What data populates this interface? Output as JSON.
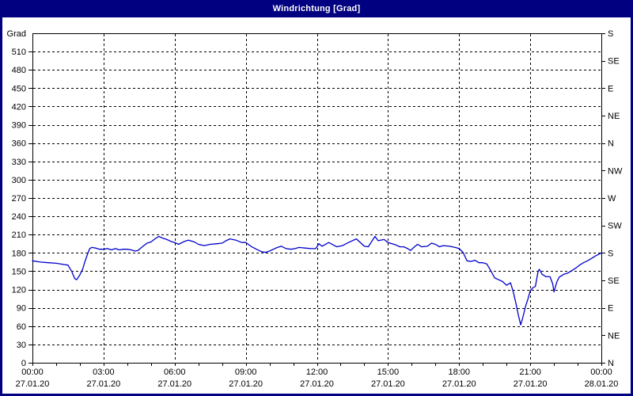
{
  "window": {
    "title": "Windrichtung [Grad]",
    "colors": {
      "titlebar_bg": "#000080",
      "titlebar_text": "#ffffff",
      "frame": "#000080",
      "background": "#ffffff",
      "grid": "#000000",
      "axis": "#000000",
      "series_line": "#0000cc",
      "label_text": "#000000"
    }
  },
  "chart_data": {
    "type": "line",
    "title": "Windrichtung [Grad]",
    "grid": "dashed, horizontal every 30 deg, vertical every 3 h",
    "legend": "none",
    "y_axis_left": {
      "axis_title": "Grad",
      "min": 0,
      "max": 540,
      "tick_step": 30,
      "tick_labels": [
        0,
        30,
        60,
        90,
        120,
        150,
        180,
        210,
        240,
        270,
        300,
        330,
        360,
        390,
        420,
        450,
        480,
        510
      ]
    },
    "y_axis_right": {
      "tick_step_deg": 45,
      "labels_bottom_to_top": [
        "N",
        "NE",
        "E",
        "SE",
        "S",
        "SW",
        "W",
        "NW",
        "N",
        "NE",
        "E",
        "SE",
        "S"
      ]
    },
    "x_axis": {
      "range_hours": 24,
      "minor_tick_hours": 1,
      "label_step_hours": 3,
      "labels": [
        {
          "time": "00:00",
          "date": "27.01.20"
        },
        {
          "time": "03:00",
          "date": "27.01.20"
        },
        {
          "time": "06:00",
          "date": "27.01.20"
        },
        {
          "time": "09:00",
          "date": "27.01.20"
        },
        {
          "time": "12:00",
          "date": "27.01.20"
        },
        {
          "time": "15:00",
          "date": "27.01.20"
        },
        {
          "time": "18:00",
          "date": "27.01.20"
        },
        {
          "time": "21:00",
          "date": "27.01.20"
        },
        {
          "time": "00:00",
          "date": "28.01.20"
        }
      ]
    },
    "series": [
      {
        "name": "Windrichtung",
        "unit": "Grad",
        "color": "#0000cc",
        "points_min_deg": [
          [
            0,
            167
          ],
          [
            20,
            165
          ],
          [
            40,
            164
          ],
          [
            60,
            163
          ],
          [
            80,
            161
          ],
          [
            90,
            160
          ],
          [
            100,
            149
          ],
          [
            107,
            138
          ],
          [
            112,
            136
          ],
          [
            120,
            144
          ],
          [
            127,
            153
          ],
          [
            133,
            166
          ],
          [
            140,
            179
          ],
          [
            145,
            187
          ],
          [
            150,
            189
          ],
          [
            160,
            188
          ],
          [
            170,
            186
          ],
          [
            180,
            186
          ],
          [
            190,
            187
          ],
          [
            200,
            185
          ],
          [
            210,
            187
          ],
          [
            220,
            185
          ],
          [
            230,
            186
          ],
          [
            240,
            186
          ],
          [
            250,
            185
          ],
          [
            260,
            183
          ],
          [
            267,
            184
          ],
          [
            280,
            191
          ],
          [
            290,
            196
          ],
          [
            300,
            198
          ],
          [
            310,
            203
          ],
          [
            320,
            207
          ],
          [
            330,
            204
          ],
          [
            340,
            202
          ],
          [
            350,
            199
          ],
          [
            360,
            197
          ],
          [
            370,
            194
          ],
          [
            385,
            199
          ],
          [
            395,
            201
          ],
          [
            410,
            198
          ],
          [
            420,
            194
          ],
          [
            435,
            192
          ],
          [
            450,
            194
          ],
          [
            465,
            195
          ],
          [
            480,
            196
          ],
          [
            490,
            200
          ],
          [
            500,
            203
          ],
          [
            515,
            201
          ],
          [
            530,
            197
          ],
          [
            540,
            197
          ],
          [
            555,
            190
          ],
          [
            567,
            186
          ],
          [
            580,
            182
          ],
          [
            590,
            181
          ],
          [
            600,
            183
          ],
          [
            610,
            186
          ],
          [
            620,
            189
          ],
          [
            630,
            191
          ],
          [
            642,
            187
          ],
          [
            654,
            186
          ],
          [
            665,
            187
          ],
          [
            675,
            189
          ],
          [
            690,
            188
          ],
          [
            705,
            187
          ],
          [
            717,
            187
          ],
          [
            725,
            195
          ],
          [
            733,
            191
          ],
          [
            750,
            197
          ],
          [
            770,
            190
          ],
          [
            785,
            192
          ],
          [
            800,
            197
          ],
          [
            820,
            203
          ],
          [
            840,
            191
          ],
          [
            850,
            190
          ],
          [
            867,
            207
          ],
          [
            875,
            200
          ],
          [
            890,
            202
          ],
          [
            900,
            197
          ],
          [
            920,
            193
          ],
          [
            930,
            190
          ],
          [
            940,
            190
          ],
          [
            950,
            187
          ],
          [
            957,
            184
          ],
          [
            967,
            190
          ],
          [
            975,
            194
          ],
          [
            985,
            190
          ],
          [
            1000,
            191
          ],
          [
            1010,
            196
          ],
          [
            1020,
            194
          ],
          [
            1030,
            190
          ],
          [
            1040,
            192
          ],
          [
            1055,
            191
          ],
          [
            1070,
            189
          ],
          [
            1080,
            187
          ],
          [
            1090,
            181
          ],
          [
            1100,
            167
          ],
          [
            1110,
            166
          ],
          [
            1120,
            168
          ],
          [
            1130,
            164
          ],
          [
            1140,
            164
          ],
          [
            1150,
            162
          ],
          [
            1160,
            151
          ],
          [
            1170,
            139
          ],
          [
            1180,
            136
          ],
          [
            1190,
            133
          ],
          [
            1200,
            127
          ],
          [
            1210,
            131
          ],
          [
            1217,
            116
          ],
          [
            1224,
            97
          ],
          [
            1230,
            78
          ],
          [
            1236,
            62
          ],
          [
            1242,
            76
          ],
          [
            1248,
            92
          ],
          [
            1254,
            104
          ],
          [
            1260,
            118
          ],
          [
            1267,
            123
          ],
          [
            1273,
            125
          ],
          [
            1280,
            150
          ],
          [
            1283,
            153
          ],
          [
            1290,
            145
          ],
          [
            1300,
            141
          ],
          [
            1310,
            141
          ],
          [
            1317,
            129
          ],
          [
            1320,
            116
          ],
          [
            1327,
            132
          ],
          [
            1333,
            140
          ],
          [
            1345,
            145
          ],
          [
            1355,
            147
          ],
          [
            1365,
            151
          ],
          [
            1375,
            155
          ],
          [
            1385,
            160
          ],
          [
            1395,
            164
          ],
          [
            1405,
            167
          ],
          [
            1415,
            171
          ],
          [
            1425,
            175
          ],
          [
            1440,
            180
          ]
        ]
      }
    ]
  }
}
